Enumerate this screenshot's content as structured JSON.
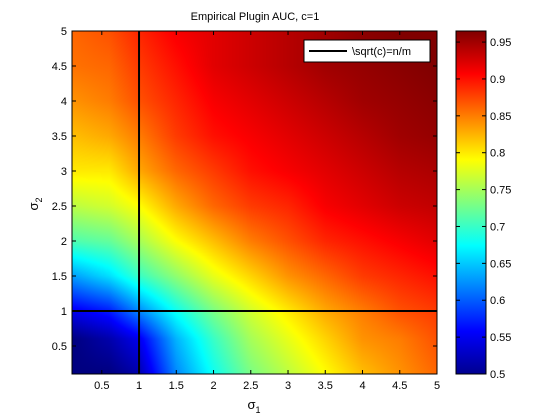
{
  "chart_data": {
    "type": "heatmap",
    "title": "Empirical Plugin AUC, c=1",
    "xlabel": {
      "symbol": "σ",
      "sub": "1"
    },
    "ylabel": {
      "symbol": "σ",
      "sub": "2"
    },
    "xlim": [
      0.1,
      5
    ],
    "ylim": [
      0.1,
      5
    ],
    "xticks": [
      0.5,
      1,
      1.5,
      2,
      2.5,
      3,
      3.5,
      4,
      4.5,
      5
    ],
    "xtick_labels": [
      "0.5",
      "1",
      "1.5",
      "2",
      "2.5",
      "3",
      "3.5",
      "4",
      "4.5",
      "5"
    ],
    "yticks": [
      0.5,
      1,
      1.5,
      2,
      2.5,
      3,
      3.5,
      4,
      4.5,
      5
    ],
    "ytick_labels": [
      "0.5",
      "1",
      "1.5",
      "2",
      "2.5",
      "3",
      "3.5",
      "4",
      "4.5",
      "5"
    ],
    "colormap": "jet",
    "clim": [
      0.5,
      0.965
    ],
    "colorbar_ticks": [
      0.5,
      0.55,
      0.6,
      0.65,
      0.7,
      0.75,
      0.8,
      0.85,
      0.9,
      0.95
    ],
    "colorbar_tick_labels": [
      "0.5",
      "0.55",
      "0.6",
      "0.65",
      "0.7",
      "0.75",
      "0.8",
      "0.85",
      "0.9",
      "0.95"
    ],
    "grid_x": [
      0.1,
      0.6,
      1.0,
      1.5,
      2.0,
      2.5,
      3.0,
      3.5,
      4.0,
      4.5,
      5.0
    ],
    "grid_y": [
      0.1,
      0.6,
      1.0,
      1.5,
      2.0,
      2.5,
      3.0,
      3.5,
      4.0,
      4.5,
      5.0
    ],
    "z": [
      [
        0.5,
        0.5,
        0.52,
        0.62,
        0.68,
        0.73,
        0.76,
        0.79,
        0.82,
        0.84,
        0.86
      ],
      [
        0.5,
        0.52,
        0.55,
        0.64,
        0.7,
        0.75,
        0.78,
        0.81,
        0.84,
        0.85,
        0.87
      ],
      [
        0.55,
        0.57,
        0.62,
        0.68,
        0.73,
        0.77,
        0.8,
        0.83,
        0.85,
        0.87,
        0.88
      ],
      [
        0.63,
        0.66,
        0.7,
        0.74,
        0.78,
        0.81,
        0.84,
        0.86,
        0.88,
        0.89,
        0.9
      ],
      [
        0.71,
        0.72,
        0.75,
        0.79,
        0.82,
        0.85,
        0.87,
        0.89,
        0.9,
        0.91,
        0.92
      ],
      [
        0.76,
        0.77,
        0.79,
        0.83,
        0.86,
        0.88,
        0.89,
        0.91,
        0.92,
        0.93,
        0.935
      ],
      [
        0.8,
        0.8,
        0.83,
        0.86,
        0.88,
        0.9,
        0.91,
        0.92,
        0.93,
        0.94,
        0.945
      ],
      [
        0.82,
        0.83,
        0.85,
        0.88,
        0.9,
        0.91,
        0.92,
        0.93,
        0.94,
        0.95,
        0.955
      ],
      [
        0.84,
        0.85,
        0.87,
        0.89,
        0.91,
        0.92,
        0.93,
        0.94,
        0.95,
        0.955,
        0.96
      ],
      [
        0.855,
        0.86,
        0.88,
        0.9,
        0.92,
        0.93,
        0.94,
        0.95,
        0.955,
        0.96,
        0.965
      ],
      [
        0.86,
        0.87,
        0.89,
        0.91,
        0.92,
        0.93,
        0.94,
        0.95,
        0.96,
        0.965,
        0.965
      ]
    ],
    "reference_lines": {
      "x": 1,
      "y": 1
    },
    "legend": {
      "label": "\\sqrt(c)=n/m",
      "position": "top-right",
      "color": "#000000"
    },
    "grid": false
  }
}
